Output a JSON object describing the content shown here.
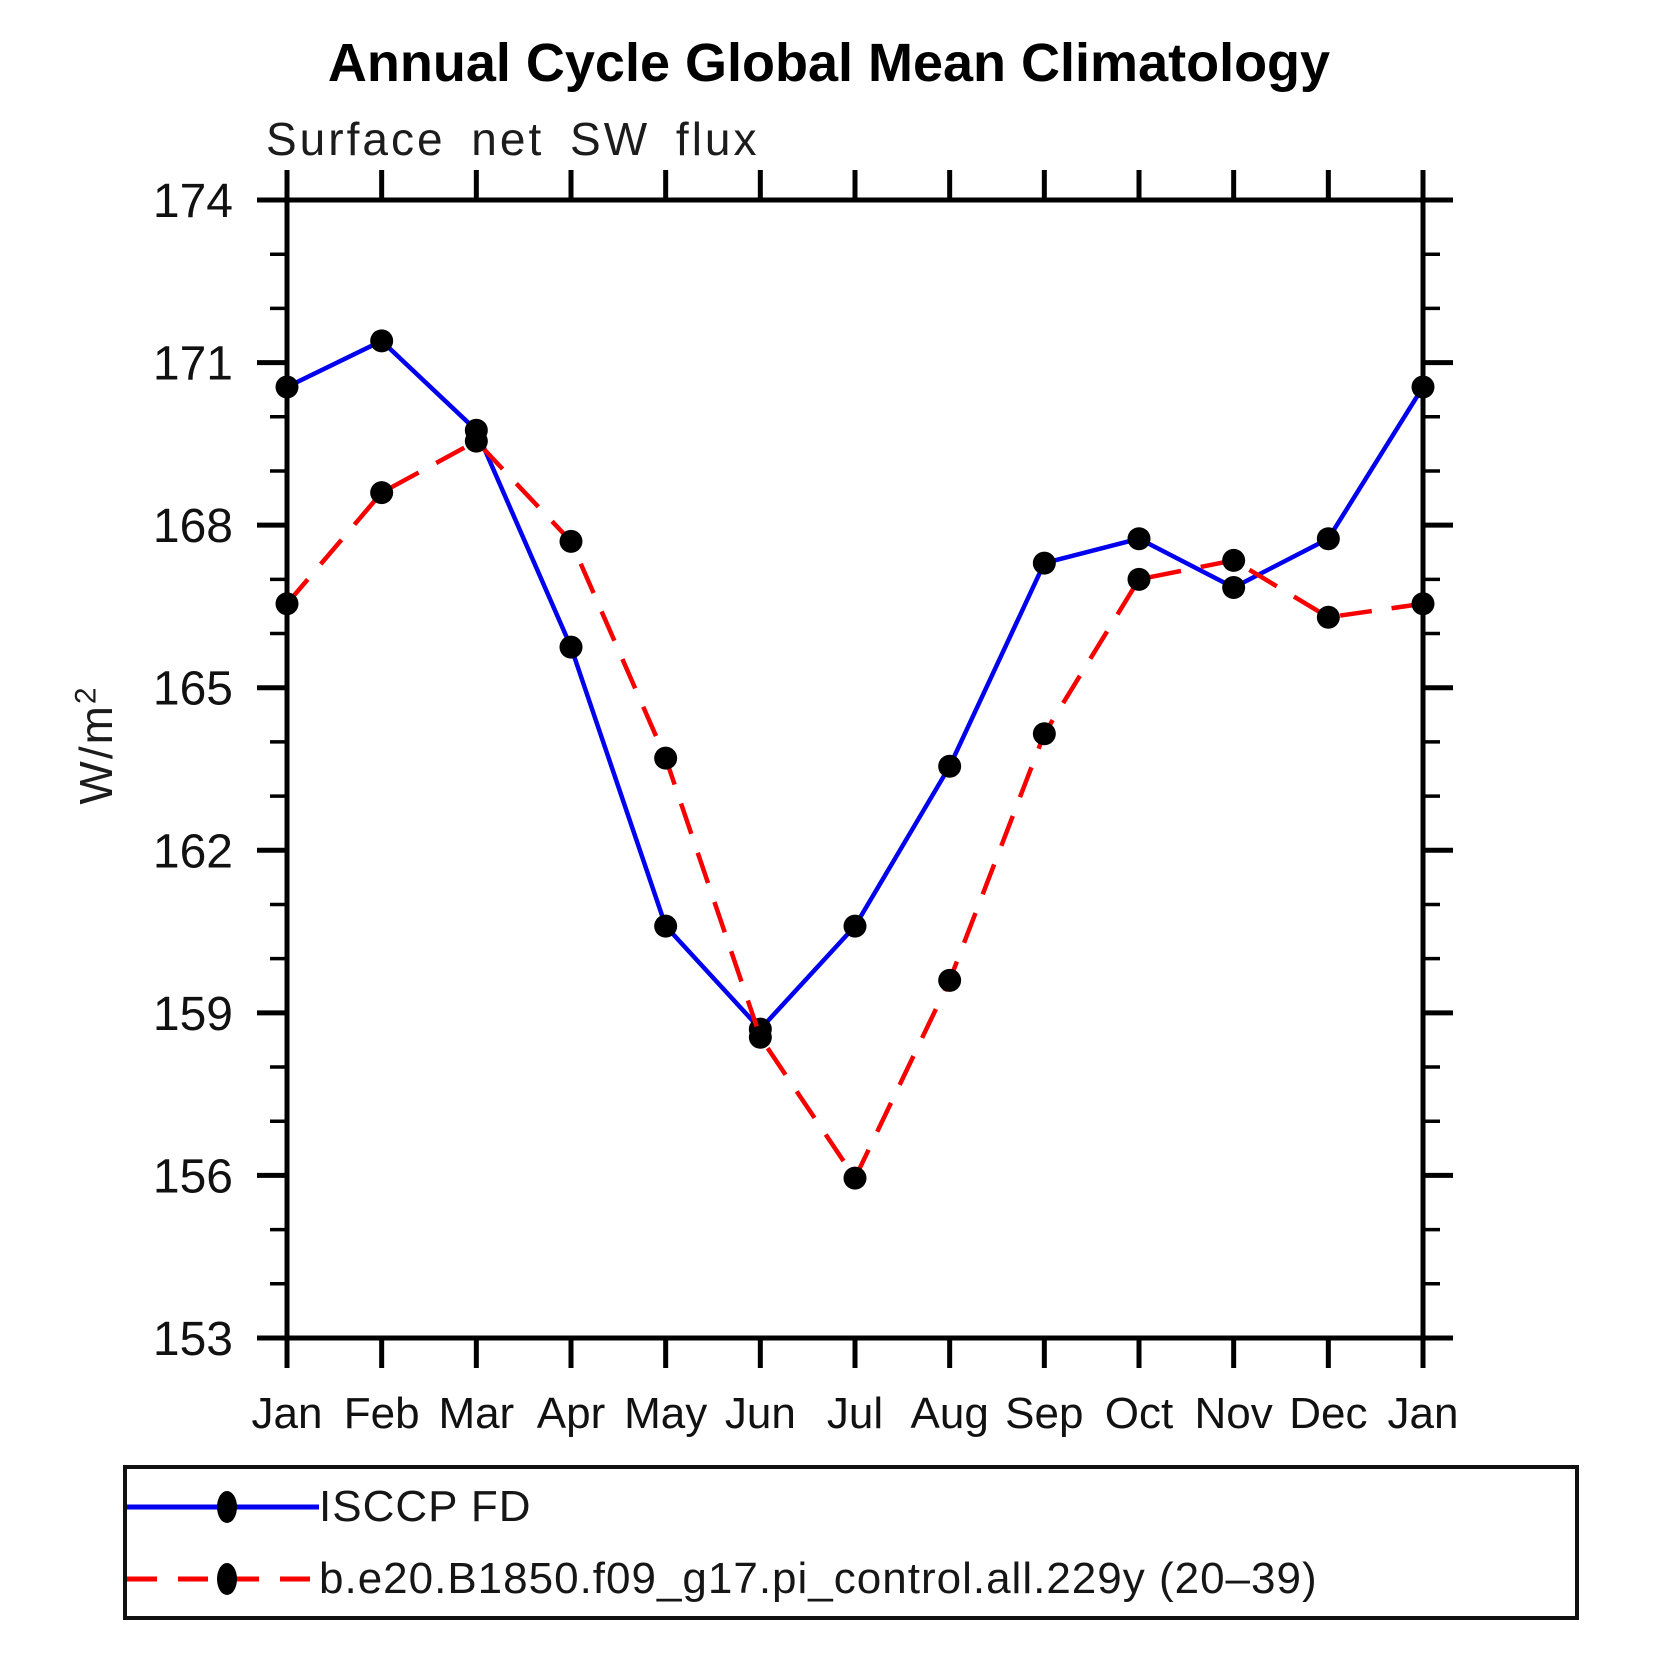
{
  "title": "Annual Cycle Global Mean Climatology",
  "subtitle": "Surface net SW flux",
  "ylabel_display": {
    "base": "W/m",
    "exponent": "2"
  },
  "legend": [
    {
      "label": "ISCCP FD",
      "color": "#0000ee",
      "line_style": "solid",
      "marker_color": "#000000"
    },
    {
      "label": "b.e20.B1850.f09_g17.pi_control.all.229y (20–39)",
      "color": "#f60000",
      "line_style": "dashed",
      "marker_color": "#000000"
    }
  ],
  "chart_data": {
    "type": "line",
    "title": "Annual Cycle Global Mean Climatology",
    "subtitle": "Surface net SW flux",
    "xlabel": "",
    "ylabel": "W/m^2",
    "x": [
      "Jan",
      "Feb",
      "Mar",
      "Apr",
      "May",
      "Jun",
      "Jul",
      "Aug",
      "Sep",
      "Oct",
      "Nov",
      "Dec",
      "Jan"
    ],
    "series": [
      {
        "name": "ISCCP FD",
        "color": "#0000ee",
        "line_style": "solid",
        "marker": "circle",
        "marker_color": "#000000",
        "values": [
          170.55,
          171.4,
          169.75,
          165.75,
          160.6,
          158.7,
          160.6,
          163.55,
          167.3,
          167.75,
          166.85,
          167.75,
          170.55
        ]
      },
      {
        "name": "b.e20.B1850.f09_g17.pi_control.all.229y (20-39)",
        "color": "#f60000",
        "line_style": "dashed",
        "marker": "circle",
        "marker_color": "#000000",
        "values": [
          166.55,
          168.6,
          169.55,
          167.7,
          163.7,
          158.55,
          155.95,
          159.6,
          164.15,
          167.0,
          167.35,
          166.3,
          166.55
        ]
      }
    ],
    "ylim": [
      153,
      174
    ],
    "ytick_major": 3,
    "ytick_minor": 1,
    "yticks_major": [
      153,
      156,
      159,
      162,
      165,
      168,
      171,
      174
    ],
    "grid": false,
    "legend_position": "bottom"
  }
}
